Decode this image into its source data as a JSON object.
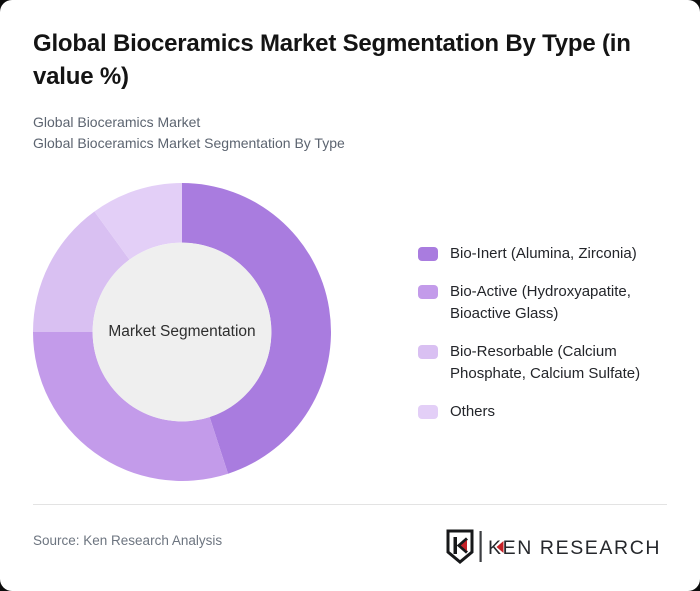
{
  "page": {
    "background": "#0c0c0c",
    "card_background": "#ffffff"
  },
  "header": {
    "title": "Global Bioceramics Market Segmentation By Type (in value %)",
    "subtitle_line1": "Global Bioceramics Market",
    "subtitle_line2": "Global Bioceramics Market Segmentation By Type"
  },
  "chart_data": {
    "type": "pie",
    "variant": "donut",
    "title": "Global Bioceramics Market Segmentation By Type (in value %)",
    "center_label": "Market Segmentation",
    "categories": [
      "Bio-Inert (Alumina, Zirconia)",
      "Bio-Active (Hydroxyapatite, Bioactive Glass)",
      "Bio-Resorbable (Calcium Phosphate, Calcium Sulfate)",
      "Others"
    ],
    "values": [
      45,
      30,
      15,
      10
    ],
    "unit": "percent of market value",
    "colors": [
      "#a97cdf",
      "#c39bea",
      "#d9c0f2",
      "#e3cff7"
    ],
    "start_angle_deg": 0,
    "direction": "clockwise",
    "inner_radius_ratio": 0.6,
    "center_bg": "#efefef",
    "legend_position": "right",
    "data_labels": "none"
  },
  "footer": {
    "source": "Source: Ken Research Analysis",
    "logo_text": "KEN RESEARCH",
    "logo_mark_letter": "K",
    "accent_red": "#c42127",
    "logo_dark": "#1b1d20"
  }
}
